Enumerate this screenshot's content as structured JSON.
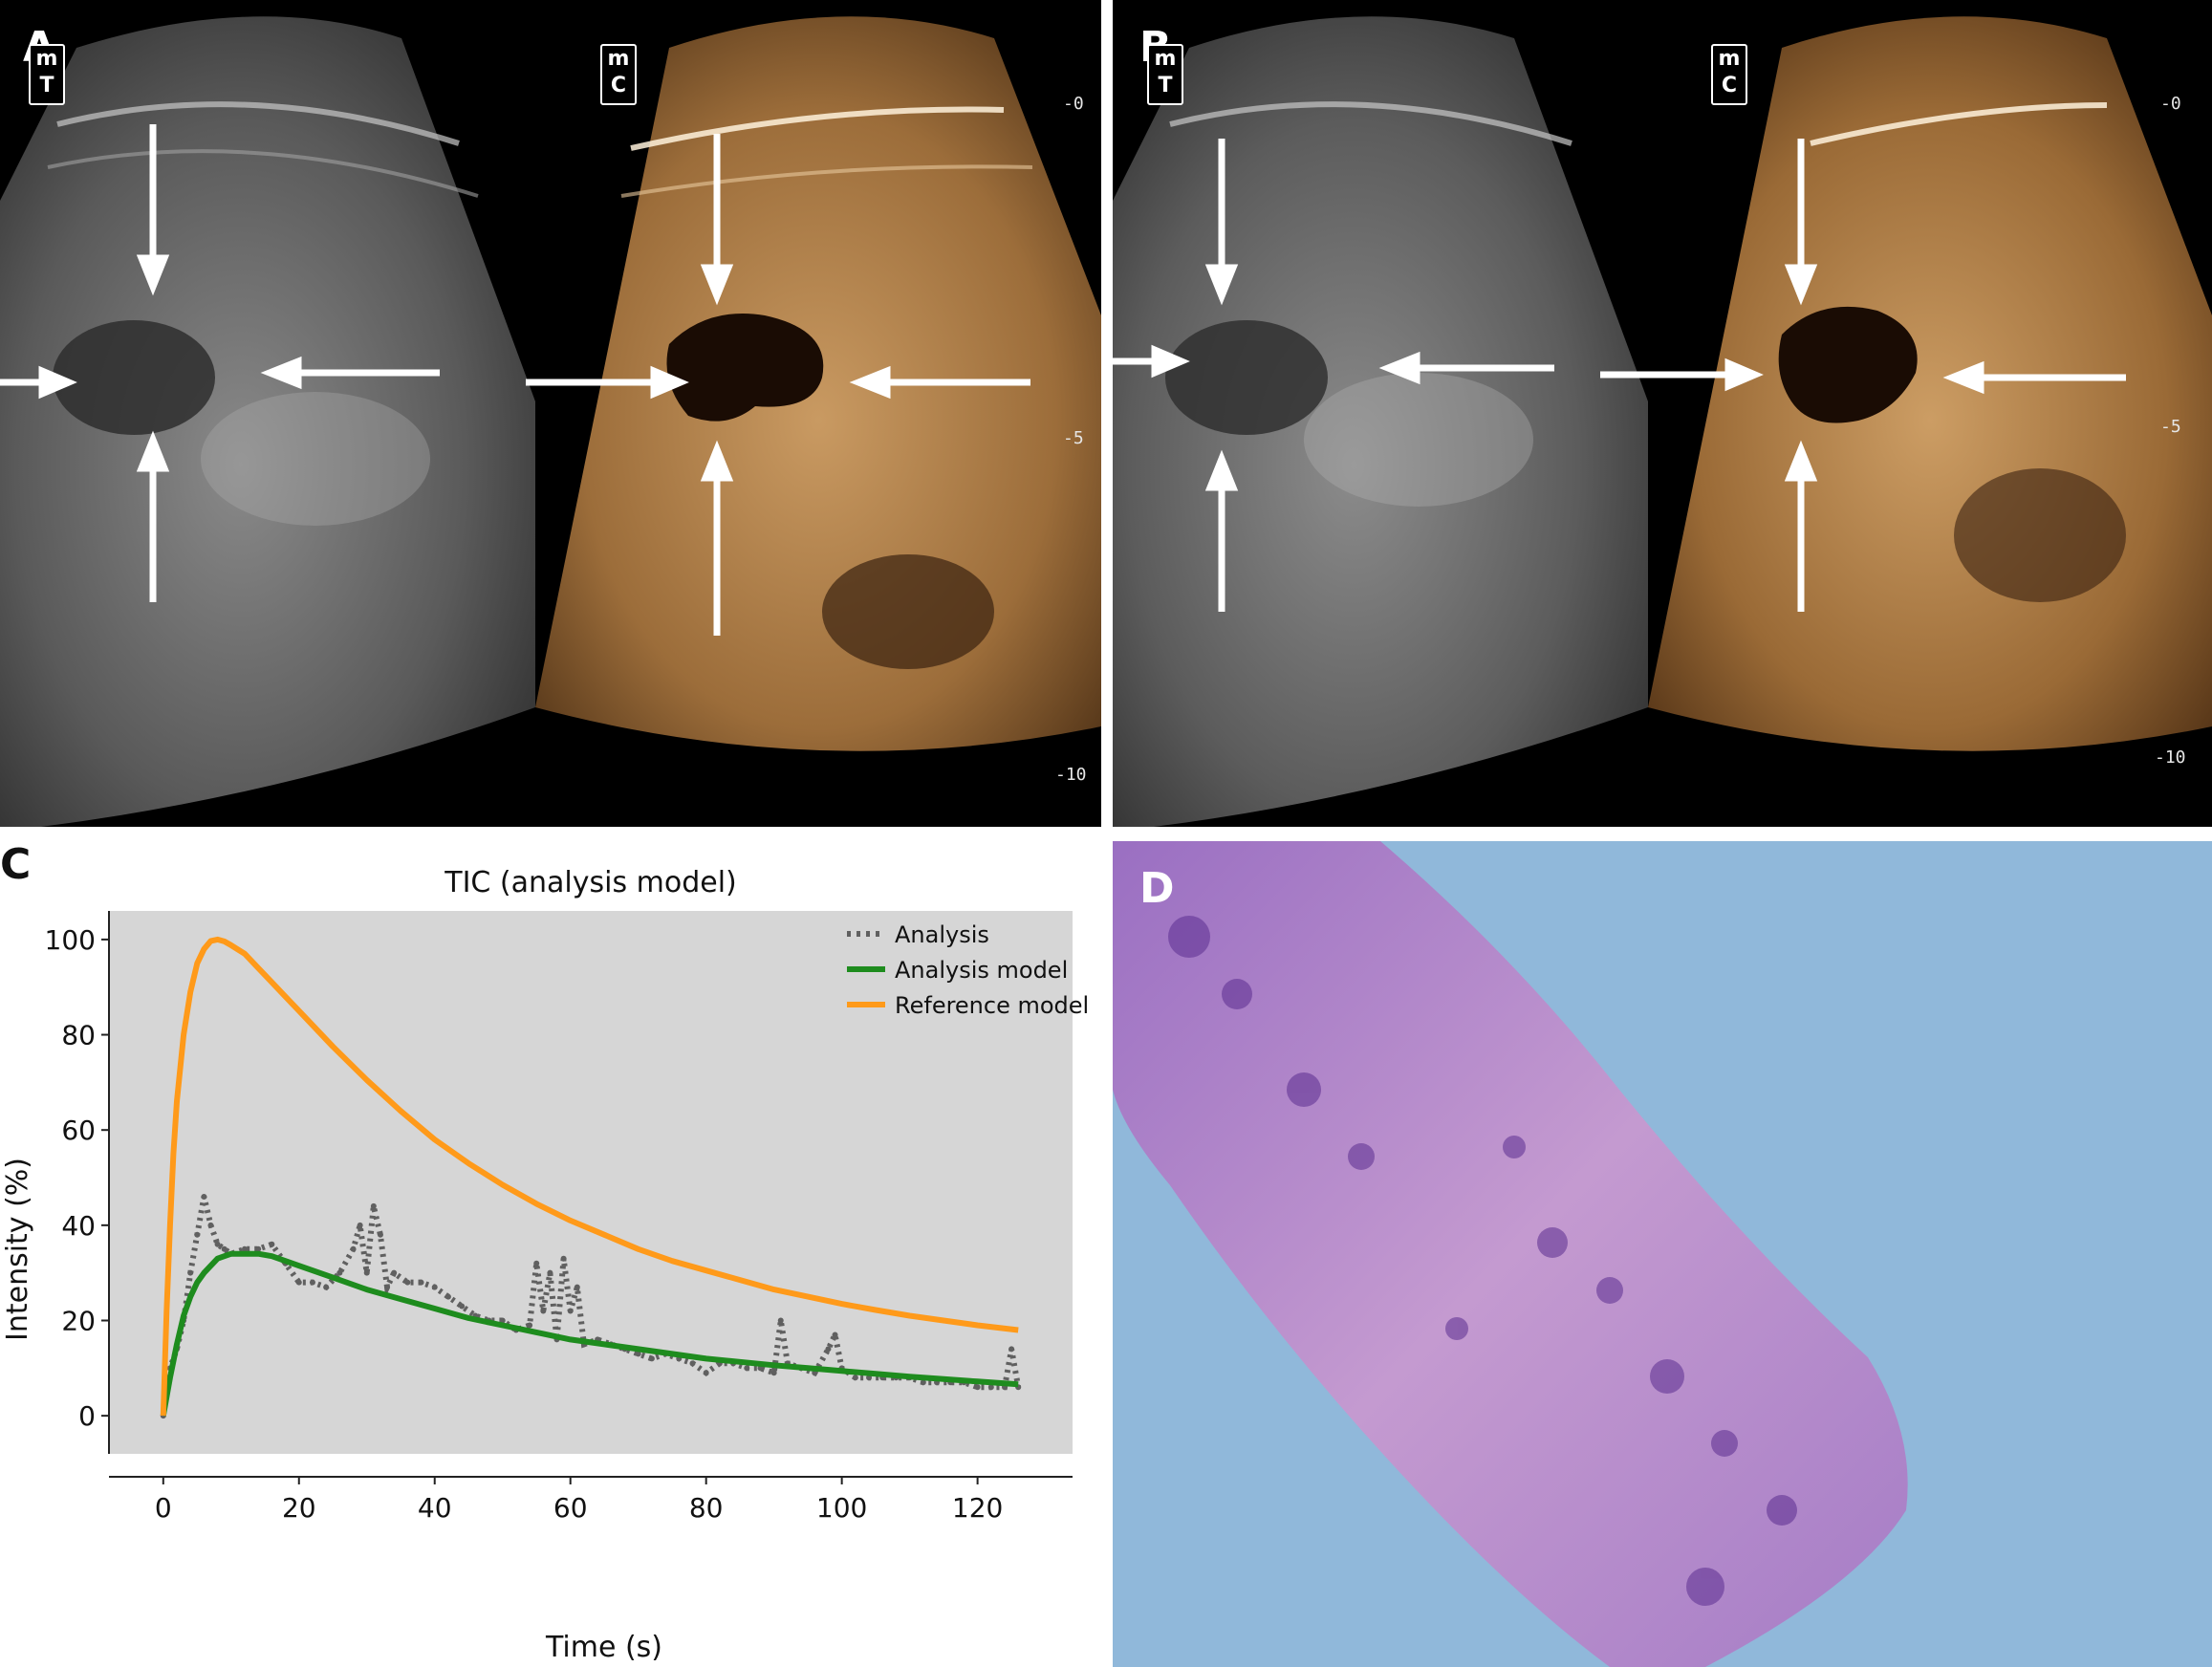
{
  "panels": {
    "a": {
      "letter": "A",
      "badges": {
        "left": [
          "m",
          "T"
        ],
        "right": [
          "m",
          "C"
        ]
      },
      "depth_scale": [
        "-0",
        "-5",
        "-10"
      ]
    },
    "b": {
      "letter": "B",
      "badges": {
        "left": [
          "m",
          "T"
        ],
        "right": [
          "m",
          "C"
        ]
      },
      "depth_scale": [
        "-0",
        "-5",
        "-10"
      ]
    },
    "c": {
      "letter": "C"
    },
    "d": {
      "letter": "D"
    }
  },
  "chart_data": {
    "type": "line",
    "title": "TIC (analysis model)",
    "xlabel": "Time (s)",
    "ylabel": "Intensity (%)",
    "xlim": [
      -8,
      134
    ],
    "ylim": [
      -8,
      106
    ],
    "xticks": [
      "0",
      "20",
      "40",
      "60",
      "80",
      "100",
      "120"
    ],
    "yticks": [
      "0",
      "20",
      "40",
      "60",
      "80",
      "100"
    ],
    "grid": false,
    "legend_position": "top-right",
    "colors": {
      "analysis": "#606060",
      "analysis_model": "#1e8c1e",
      "reference_model": "#ff9a1a",
      "plot_bg": "#d6d6d6"
    },
    "series": [
      {
        "name": "Analysis",
        "style": "dotted",
        "x": [
          0,
          1,
          2,
          3,
          4,
          5,
          6,
          7,
          8,
          9,
          10,
          12,
          14,
          16,
          18,
          20,
          22,
          24,
          26,
          28,
          29,
          30,
          31,
          32,
          33,
          34,
          36,
          38,
          40,
          42,
          44,
          46,
          48,
          50,
          52,
          54,
          55,
          56,
          57,
          58,
          59,
          60,
          61,
          62,
          64,
          66,
          68,
          70,
          72,
          74,
          76,
          78,
          80,
          82,
          84,
          86,
          88,
          90,
          91,
          92,
          94,
          96,
          98,
          99,
          100,
          102,
          104,
          106,
          108,
          110,
          112,
          114,
          116,
          118,
          120,
          122,
          124,
          125,
          126
        ],
        "y": [
          0,
          10,
          14,
          20,
          30,
          38,
          46,
          40,
          36,
          35,
          34,
          35,
          35,
          36,
          32,
          28,
          28,
          27,
          30,
          35,
          40,
          30,
          44,
          38,
          27,
          30,
          28,
          28,
          27,
          25,
          23,
          21,
          20,
          20,
          18,
          19,
          32,
          22,
          30,
          16,
          33,
          22,
          27,
          15,
          16,
          15,
          14,
          13,
          12,
          13,
          12,
          11,
          9,
          11,
          11,
          10,
          10,
          9,
          20,
          11,
          10,
          9,
          14,
          17,
          10,
          8,
          8,
          8,
          8,
          8,
          7,
          7,
          7,
          7,
          6,
          6,
          6,
          14,
          6
        ]
      },
      {
        "name": "Analysis model",
        "style": "solid",
        "x": [
          0,
          1,
          2,
          3,
          4,
          5,
          6,
          8,
          10,
          12,
          14,
          16,
          18,
          20,
          25,
          30,
          35,
          40,
          45,
          50,
          55,
          60,
          65,
          70,
          75,
          80,
          85,
          90,
          95,
          100,
          105,
          110,
          115,
          120,
          126
        ],
        "y": [
          0,
          8,
          15,
          21,
          25,
          28,
          30,
          33,
          34,
          34,
          34,
          33.5,
          32.5,
          31.5,
          29,
          26.5,
          24.5,
          22.5,
          20.5,
          19,
          17.5,
          16,
          15,
          14,
          13,
          12,
          11.3,
          10.6,
          10,
          9.4,
          8.8,
          8.2,
          7.7,
          7.2,
          6.6
        ]
      },
      {
        "name": "Reference model",
        "style": "solid",
        "x": [
          0,
          0.5,
          1,
          1.5,
          2,
          3,
          4,
          5,
          6,
          7,
          8,
          9,
          10,
          12,
          14,
          16,
          18,
          20,
          25,
          30,
          35,
          40,
          45,
          50,
          55,
          60,
          65,
          70,
          75,
          80,
          85,
          90,
          95,
          100,
          105,
          110,
          115,
          120,
          126
        ],
        "y": [
          0,
          22,
          40,
          55,
          66,
          80,
          89,
          95,
          98,
          99.7,
          100,
          99.6,
          98.8,
          97,
          94,
          91,
          88,
          85,
          77.5,
          70.5,
          64,
          58,
          53,
          48.5,
          44.5,
          41,
          38,
          35,
          32.5,
          30.5,
          28.5,
          26.5,
          25,
          23.5,
          22.2,
          21,
          20,
          19,
          18
        ]
      }
    ]
  }
}
